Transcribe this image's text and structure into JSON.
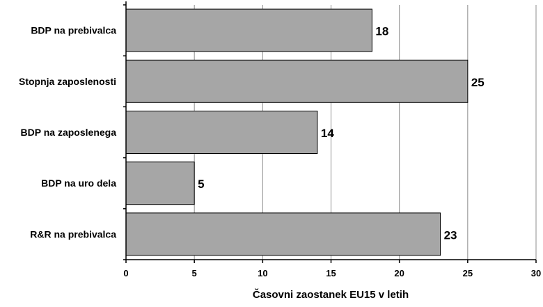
{
  "chart_data": {
    "type": "bar",
    "orientation": "horizontal",
    "categories": [
      "BDP na prebivalca",
      "Stopnja zaposlenosti",
      "BDP na zaposlenega",
      "BDP na uro dela",
      "R&R na prebivalca"
    ],
    "values": [
      18,
      25,
      14,
      5,
      23
    ],
    "xlabel": "Časovni zaostanek EU15  v letih",
    "ylabel": "",
    "xlim": [
      0,
      30
    ],
    "xticks": [
      0,
      5,
      10,
      15,
      20,
      25,
      30
    ],
    "grid": "vertical",
    "data_labels": true,
    "legend": "none",
    "colors": {
      "bar_fill": "#a6a6a6",
      "bar_stroke": "#000000",
      "grid": "#8c8c8c",
      "axis": "#000000"
    }
  }
}
